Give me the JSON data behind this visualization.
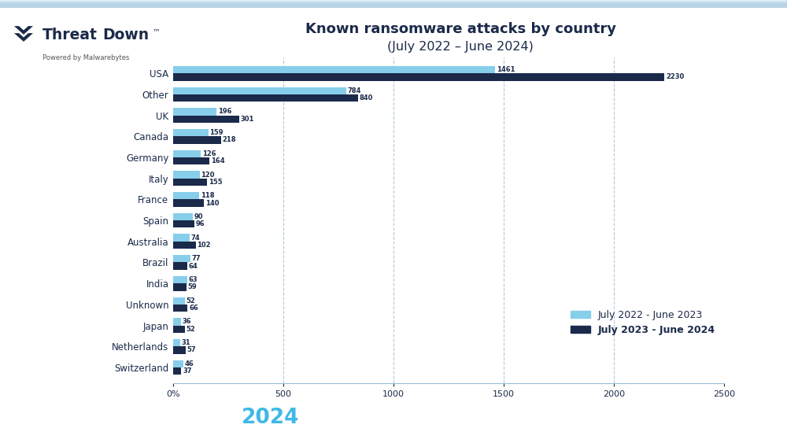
{
  "title_line1": "Known ransomware attacks by country",
  "title_line2": "(July 2022 – June 2024)",
  "categories": [
    "USA",
    "Other",
    "UK",
    "Canada",
    "Germany",
    "Italy",
    "France",
    "Spain",
    "Australia",
    "Brazil",
    "India",
    "Unknown",
    "Japan",
    "Netherlands",
    "Switzerland"
  ],
  "values_2022_2023": [
    1461,
    784,
    196,
    159,
    126,
    120,
    118,
    90,
    74,
    77,
    63,
    52,
    36,
    31,
    46
  ],
  "values_2023_2024": [
    2230,
    840,
    301,
    218,
    164,
    155,
    140,
    96,
    102,
    64,
    59,
    66,
    52,
    57,
    37
  ],
  "color_light": "#87ceeb",
  "color_dark": "#1b2a4a",
  "xlim": [
    0,
    2500
  ],
  "xticks": [
    0,
    500,
    1000,
    1500,
    2000,
    2500
  ],
  "bg_color": "#c8dff0",
  "bg_color_top": "#e8f4fb",
  "footer_bg": "#1a2540",
  "footer_year_color": "#40b8e8",
  "footer_text_color": "#ffffff",
  "legend_label1": "July 2022 - June 2023",
  "legend_label2": "July 2023 - June 2024",
  "bar_height": 0.35,
  "logo_threat_color": "#1b2a4a",
  "logo_down_color": "#1b2a4a",
  "logo_sub_color": "#555555",
  "grid_color": "#9bbdd4",
  "text_color": "#1b2a4a",
  "map_color": "#ffffff",
  "map_alpha": 0.85
}
